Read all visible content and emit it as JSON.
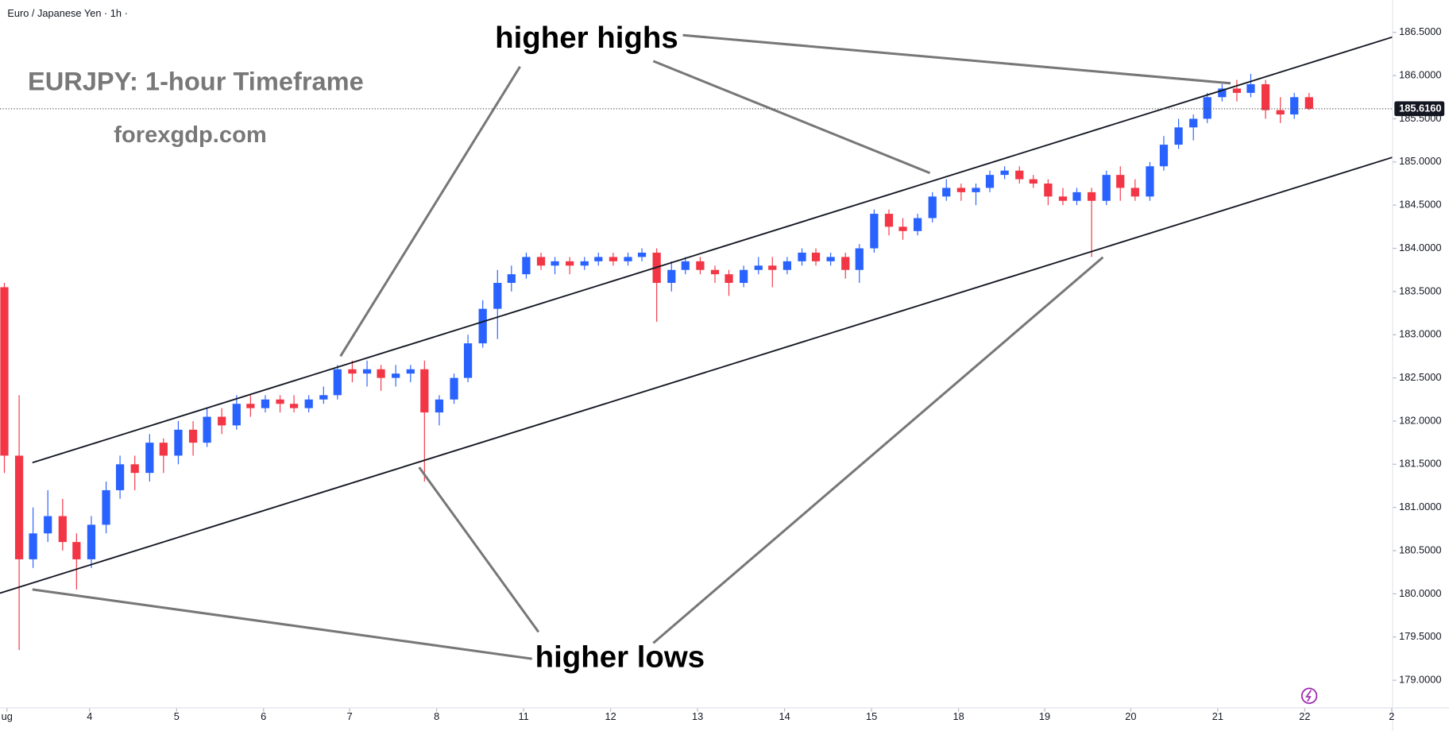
{
  "chart_data": {
    "type": "candlestick",
    "title": "Euro / Japanese Yen · 1h ·",
    "annotations": [
      "EURJPY: 1-hour Timeframe",
      "forexgdp.com",
      "higher highs",
      "higher lows"
    ],
    "up_color": "#2962ff",
    "down_color": "#f23645",
    "last_price": {
      "value": 185.616,
      "label": "185.6160"
    },
    "xlim": [
      0,
      16.01
    ],
    "xticks": [
      {
        "value": 0.08,
        "label": "ug"
      },
      {
        "value": 1.03,
        "label": "4"
      },
      {
        "value": 2.03,
        "label": "5"
      },
      {
        "value": 3.03,
        "label": "6"
      },
      {
        "value": 4.02,
        "label": "7"
      },
      {
        "value": 5.02,
        "label": "8"
      },
      {
        "value": 6.02,
        "label": "11"
      },
      {
        "value": 7.02,
        "label": "12"
      },
      {
        "value": 8.02,
        "label": "13"
      },
      {
        "value": 9.02,
        "label": "14"
      },
      {
        "value": 10.02,
        "label": "15"
      },
      {
        "value": 11.02,
        "label": "18"
      },
      {
        "value": 12.01,
        "label": "19"
      },
      {
        "value": 13.0,
        "label": "20"
      },
      {
        "value": 14.0,
        "label": "21"
      },
      {
        "value": 15.0,
        "label": "22"
      },
      {
        "value": 16.0,
        "label": "2"
      }
    ],
    "ylim": [
      178.68,
      186.875
    ],
    "yticks": [
      {
        "value": 179.0,
        "label": "179.0000"
      },
      {
        "value": 179.5,
        "label": "179.5000"
      },
      {
        "value": 180.0,
        "label": "180.0000"
      },
      {
        "value": 180.5,
        "label": "180.5000"
      },
      {
        "value": 181.0,
        "label": "181.0000"
      },
      {
        "value": 181.5,
        "label": "181.5000"
      },
      {
        "value": 182.0,
        "label": "182.0000"
      },
      {
        "value": 182.5,
        "label": "182.5000"
      },
      {
        "value": 183.0,
        "label": "183.0000"
      },
      {
        "value": 183.5,
        "label": "183.5000"
      },
      {
        "value": 184.0,
        "label": "184.0000"
      },
      {
        "value": 184.5,
        "label": "184.5000"
      },
      {
        "value": 185.0,
        "label": "185.0000"
      },
      {
        "value": 185.5,
        "label": "185.5000"
      },
      {
        "value": 186.0,
        "label": "186.0000"
      },
      {
        "value": 186.5,
        "label": "186.5000"
      }
    ],
    "x": [
      0.05,
      0.22,
      0.38,
      0.55,
      0.72,
      0.88,
      1.05,
      1.22,
      1.38,
      1.55,
      1.72,
      1.88,
      2.05,
      2.22,
      2.38,
      2.55,
      2.72,
      2.88,
      3.05,
      3.22,
      3.38,
      3.55,
      3.72,
      3.88,
      4.05,
      4.22,
      4.38,
      4.55,
      4.72,
      4.88,
      5.05,
      5.22,
      5.38,
      5.55,
      5.72,
      5.88,
      6.05,
      6.22,
      6.38,
      6.55,
      6.72,
      6.88,
      7.05,
      7.22,
      7.38,
      7.55,
      7.72,
      7.88,
      8.05,
      8.22,
      8.38,
      8.55,
      8.72,
      8.88,
      9.05,
      9.22,
      9.38,
      9.55,
      9.72,
      9.88,
      10.05,
      10.22,
      10.38,
      10.55,
      10.72,
      10.88,
      11.05,
      11.22,
      11.38,
      11.55,
      11.72,
      11.88,
      12.05,
      12.22,
      12.38,
      12.55,
      12.72,
      12.88,
      13.05,
      13.22,
      13.38,
      13.55,
      13.72,
      13.88,
      14.05,
      14.22,
      14.38,
      14.55,
      14.72,
      14.88,
      15.05
    ],
    "open": [
      183.55,
      181.6,
      180.4,
      180.7,
      180.9,
      180.6,
      180.4,
      180.8,
      181.2,
      181.5,
      181.4,
      181.75,
      181.6,
      181.9,
      181.75,
      182.05,
      181.95,
      182.2,
      182.15,
      182.25,
      182.2,
      182.15,
      182.25,
      182.3,
      182.6,
      182.55,
      182.6,
      182.5,
      182.55,
      182.6,
      182.1,
      182.25,
      182.5,
      182.9,
      183.3,
      183.6,
      183.7,
      183.9,
      183.8,
      183.85,
      183.8,
      183.85,
      183.9,
      183.85,
      183.9,
      183.95,
      183.6,
      183.75,
      183.85,
      183.75,
      183.7,
      183.6,
      183.75,
      183.8,
      183.75,
      183.85,
      183.95,
      183.85,
      183.9,
      183.75,
      184.0,
      184.4,
      184.25,
      184.2,
      184.35,
      184.6,
      184.7,
      184.65,
      184.7,
      184.85,
      184.9,
      184.8,
      184.75,
      184.6,
      184.55,
      184.65,
      184.55,
      184.85,
      184.7,
      184.6,
      184.95,
      185.2,
      185.4,
      185.5,
      185.75,
      185.85,
      185.8,
      185.9,
      185.6,
      185.55,
      185.75
    ],
    "high": [
      183.6,
      182.3,
      181.0,
      181.2,
      181.1,
      180.7,
      180.9,
      181.3,
      181.6,
      181.6,
      181.85,
      181.8,
      182.0,
      182.0,
      182.15,
      182.15,
      182.3,
      182.3,
      182.3,
      182.3,
      182.3,
      182.3,
      182.4,
      182.65,
      182.7,
      182.7,
      182.65,
      182.65,
      182.65,
      182.7,
      182.3,
      182.55,
      183.0,
      183.4,
      183.75,
      183.8,
      183.95,
      183.95,
      183.9,
      183.9,
      183.9,
      183.95,
      183.95,
      183.95,
      184.0,
      184.0,
      183.85,
      183.9,
      183.9,
      183.8,
      183.75,
      183.8,
      183.9,
      183.9,
      183.9,
      184.0,
      184.0,
      183.95,
      183.95,
      184.05,
      184.45,
      184.45,
      184.35,
      184.4,
      184.65,
      184.8,
      184.75,
      184.75,
      184.9,
      184.95,
      184.95,
      184.85,
      184.8,
      184.7,
      184.7,
      184.7,
      184.9,
      184.95,
      184.8,
      185.0,
      185.3,
      185.5,
      185.55,
      185.8,
      185.9,
      185.95,
      186.02,
      185.95,
      185.75,
      185.8,
      185.8
    ],
    "low": [
      181.4,
      179.35,
      180.3,
      180.6,
      180.5,
      180.05,
      180.3,
      180.7,
      181.1,
      181.2,
      181.3,
      181.4,
      181.5,
      181.6,
      181.7,
      181.85,
      181.9,
      182.05,
      182.1,
      182.1,
      182.1,
      182.1,
      182.2,
      182.25,
      182.45,
      182.4,
      182.35,
      182.4,
      182.45,
      181.3,
      181.95,
      182.2,
      182.45,
      182.85,
      182.95,
      183.5,
      183.65,
      183.75,
      183.7,
      183.7,
      183.75,
      183.8,
      183.8,
      183.8,
      183.85,
      183.15,
      183.5,
      183.7,
      183.7,
      183.6,
      183.45,
      183.55,
      183.7,
      183.55,
      183.7,
      183.8,
      183.8,
      183.8,
      183.65,
      183.6,
      183.95,
      184.15,
      184.1,
      184.15,
      184.3,
      184.55,
      184.55,
      184.5,
      184.65,
      184.8,
      184.75,
      184.7,
      184.5,
      184.5,
      184.5,
      183.9,
      184.5,
      184.55,
      184.55,
      184.55,
      184.9,
      185.15,
      185.25,
      185.45,
      185.7,
      185.7,
      185.75,
      185.5,
      185.45,
      185.5,
      185.6
    ],
    "close": [
      181.6,
      180.4,
      180.7,
      180.9,
      180.6,
      180.4,
      180.8,
      181.2,
      181.5,
      181.4,
      181.75,
      181.6,
      181.9,
      181.75,
      182.05,
      181.95,
      182.2,
      182.15,
      182.25,
      182.2,
      182.15,
      182.25,
      182.3,
      182.6,
      182.55,
      182.6,
      182.5,
      182.55,
      182.6,
      182.1,
      182.25,
      182.5,
      182.9,
      183.3,
      183.6,
      183.7,
      183.9,
      183.8,
      183.85,
      183.8,
      183.85,
      183.9,
      183.85,
      183.9,
      183.95,
      183.6,
      183.75,
      183.85,
      183.75,
      183.7,
      183.6,
      183.75,
      183.8,
      183.75,
      183.85,
      183.95,
      183.85,
      183.9,
      183.75,
      184.0,
      184.4,
      184.25,
      184.2,
      184.35,
      184.6,
      184.7,
      184.65,
      184.7,
      184.85,
      184.9,
      184.8,
      184.75,
      184.6,
      184.55,
      184.65,
      184.55,
      184.85,
      184.7,
      184.6,
      184.95,
      185.2,
      185.4,
      185.5,
      185.75,
      185.85,
      185.8,
      185.9,
      185.6,
      185.55,
      185.75,
      185.616
    ]
  }
}
